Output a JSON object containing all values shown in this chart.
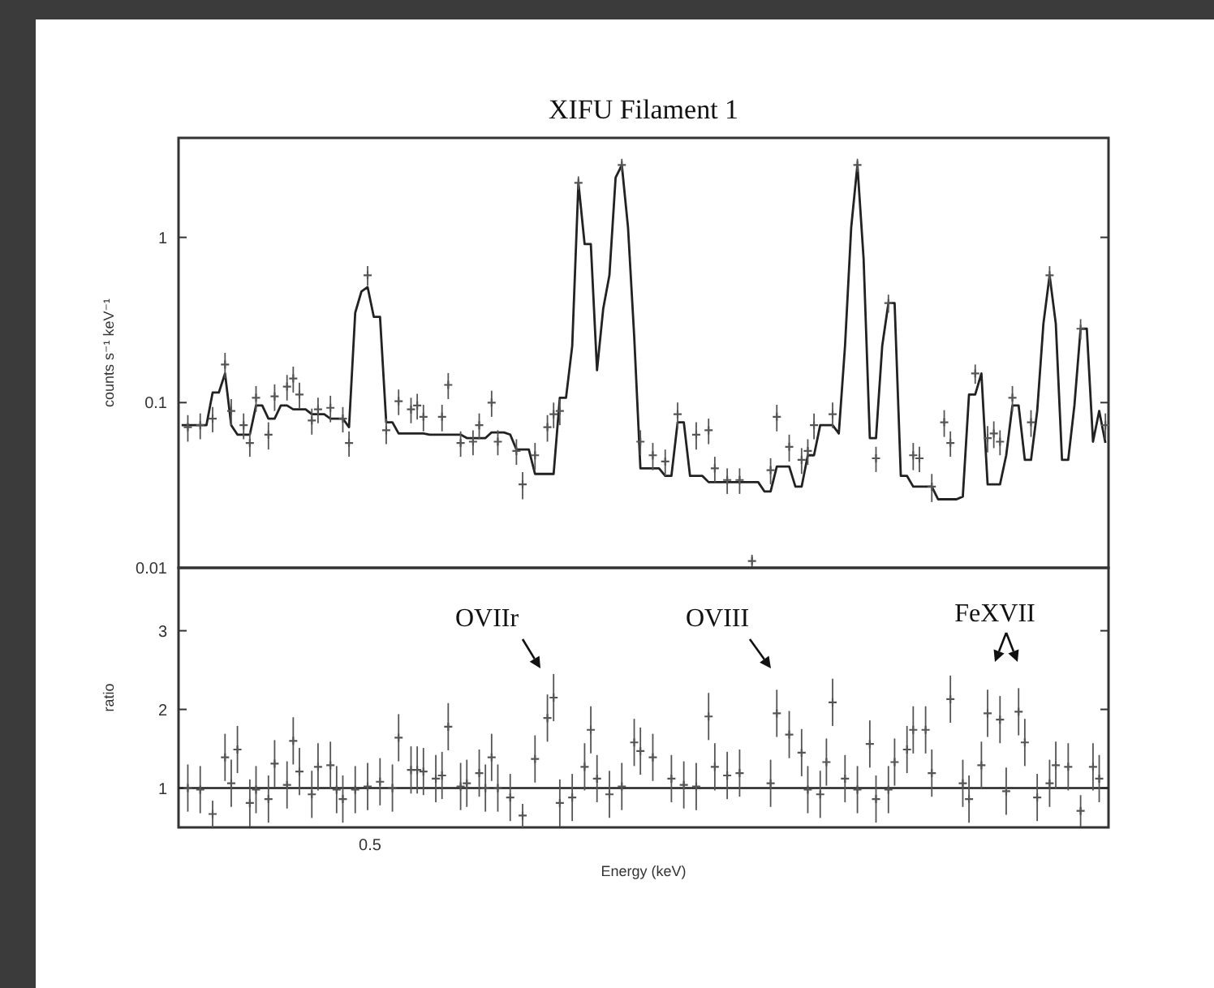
{
  "chart_data": [
    {
      "type": "scatter",
      "title": "XIFU Filament 1",
      "ylabel": "counts s⁻¹ keV⁻¹",
      "log": "y",
      "ylim": [
        0.01,
        4
      ],
      "yticks": [
        0.01,
        0.1,
        1
      ],
      "categories": [
        null,
        null,
        null,
        null,
        null,
        null,
        null,
        null,
        null,
        null,
        null,
        null,
        null,
        null,
        null,
        null,
        null,
        null,
        null,
        null,
        null,
        null,
        null,
        null,
        null,
        null,
        null,
        null,
        null,
        null,
        null,
        null,
        null,
        null,
        null,
        null,
        null,
        null,
        null,
        null,
        null,
        null,
        null,
        null,
        null,
        null,
        null,
        null,
        null,
        null,
        null,
        null,
        null,
        null,
        null,
        null,
        null,
        null,
        null,
        null,
        null,
        null,
        null,
        null,
        null,
        null,
        null,
        null,
        null,
        null,
        null,
        null,
        null,
        null,
        null,
        null,
        null,
        null,
        null,
        null,
        null,
        null,
        null,
        null,
        null,
        null,
        null,
        null,
        null,
        null,
        null,
        null,
        null,
        null,
        null,
        null,
        null,
        null,
        null,
        null,
        null,
        null,
        null,
        null,
        null,
        null,
        null,
        null,
        null,
        null,
        null,
        null,
        null,
        null,
        null,
        null,
        null,
        null,
        null,
        null,
        null,
        null,
        null,
        null,
        null,
        null,
        null,
        null,
        null,
        null,
        null,
        null,
        null,
        null,
        null,
        null,
        null,
        null,
        null,
        null,
        null,
        null,
        null,
        null,
        null,
        null,
        null,
        null,
        null,
        null
      ],
      "series": [
        {
          "type": "line",
          "color": "#222222",
          "values": [
            0.073,
            0.073,
            0.073,
            0.073,
            0.073,
            0.115,
            0.115,
            0.15,
            0.073,
            0.064,
            0.064,
            0.064,
            0.096,
            0.096,
            0.08,
            0.08,
            0.096,
            0.096,
            0.091,
            0.091,
            0.091,
            0.085,
            0.085,
            0.085,
            0.08,
            0.08,
            0.08,
            0.071,
            0.35,
            0.47,
            0.5,
            0.33,
            0.33,
            0.076,
            0.076,
            0.065,
            0.065,
            0.065,
            0.065,
            0.065,
            0.064,
            0.064,
            0.064,
            0.064,
            0.064,
            0.064,
            0.061,
            0.061,
            0.061,
            0.061,
            0.066,
            0.066,
            0.066,
            0.064,
            0.052,
            0.052,
            0.052,
            0.037,
            0.037,
            0.037,
            0.037,
            0.107,
            0.107,
            0.22,
            2.14,
            0.91,
            0.91,
            0.157,
            0.37,
            0.59,
            2.3,
            2.74,
            1.15,
            0.25,
            0.04,
            0.04,
            0.04,
            0.04,
            0.036,
            0.036,
            0.076,
            0.076,
            0.036,
            0.036,
            0.036,
            0.033,
            0.033,
            0.033,
            0.033,
            0.033,
            0.033,
            0.033,
            0.033,
            0.033,
            0.029,
            0.029,
            0.041,
            0.041,
            0.041,
            0.031,
            0.031,
            0.048,
            0.048,
            0.073,
            0.073,
            0.073,
            0.065,
            0.22,
            1.15,
            2.74,
            0.74,
            0.061,
            0.061,
            0.22,
            0.4,
            0.4,
            0.036,
            0.036,
            0.031,
            0.031,
            0.031,
            0.031,
            0.026,
            0.026,
            0.026,
            0.026,
            0.027,
            0.112,
            0.112,
            0.15,
            0.032,
            0.032,
            0.032,
            0.048,
            0.096,
            0.096,
            0.045,
            0.045,
            0.089,
            0.3,
            0.59,
            0.3,
            0.045,
            0.045,
            0.096,
            0.28,
            0.28,
            0.058,
            0.089,
            0.057
          ]
        },
        {
          "color": "#555555",
          "marker": "cross",
          "values": [
            null,
            0.071,
            null,
            0.073,
            null,
            0.08,
            null,
            0.17,
            0.089,
            null,
            0.073,
            0.057,
            0.107,
            null,
            0.064,
            0.109,
            null,
            0.125,
            0.14,
            0.112,
            null,
            0.078,
            0.091,
            null,
            0.093,
            null,
            0.08,
            0.057,
            null,
            null,
            0.59,
            null,
            null,
            0.068,
            null,
            0.102,
            null,
            0.091,
            0.096,
            0.082,
            null,
            null,
            0.082,
            0.128,
            null,
            0.057,
            null,
            0.058,
            0.073,
            null,
            0.1,
            0.058,
            null,
            null,
            0.051,
            0.032,
            null,
            0.048,
            null,
            0.071,
            0.085,
            0.089,
            null,
            null,
            2.14,
            null,
            null,
            null,
            null,
            null,
            null,
            2.74,
            null,
            null,
            0.058,
            null,
            0.048,
            null,
            0.044,
            null,
            0.085,
            null,
            null,
            0.064,
            null,
            0.068,
            0.04,
            null,
            0.034,
            null,
            0.034,
            null,
            0.011,
            null,
            null,
            0.039,
            0.082,
            null,
            0.054,
            null,
            0.045,
            0.051,
            0.073,
            null,
            null,
            0.085,
            null,
            null,
            null,
            2.74,
            null,
            null,
            0.046,
            null,
            0.4,
            null,
            null,
            null,
            0.048,
            0.046,
            null,
            0.031,
            null,
            0.076,
            0.057,
            null,
            null,
            null,
            0.15,
            null,
            0.061,
            0.065,
            0.058,
            null,
            0.107,
            null,
            null,
            0.076,
            null,
            null,
            0.59,
            null,
            null,
            null,
            null,
            0.28,
            null,
            null,
            null,
            0.073
          ],
          "errors": [
            null,
            0.013,
            null,
            0.013,
            null,
            0.014,
            null,
            0.03,
            0.016,
            null,
            0.013,
            0.01,
            0.019,
            null,
            0.012,
            0.02,
            null,
            0.022,
            0.025,
            0.02,
            null,
            0.014,
            0.016,
            null,
            0.017,
            null,
            0.014,
            0.01,
            null,
            null,
            0.08,
            null,
            null,
            0.012,
            null,
            0.018,
            null,
            0.016,
            0.017,
            0.015,
            null,
            null,
            0.015,
            0.023,
            null,
            0.01,
            null,
            0.01,
            0.013,
            null,
            0.018,
            0.01,
            null,
            null,
            0.009,
            0.006,
            null,
            0.009,
            null,
            0.013,
            0.015,
            0.016,
            null,
            null,
            0.2,
            null,
            null,
            null,
            null,
            null,
            null,
            0.25,
            null,
            null,
            0.01,
            null,
            0.009,
            null,
            0.008,
            null,
            0.015,
            null,
            null,
            0.012,
            null,
            0.012,
            0.007,
            null,
            0.006,
            null,
            0.006,
            null,
            0.001,
            null,
            null,
            0.007,
            0.015,
            null,
            0.01,
            null,
            0.008,
            0.009,
            0.013,
            null,
            null,
            0.015,
            null,
            null,
            null,
            0.25,
            null,
            null,
            0.008,
            null,
            0.05,
            null,
            null,
            null,
            0.009,
            0.008,
            null,
            0.006,
            null,
            0.014,
            0.01,
            null,
            null,
            null,
            0.02,
            null,
            0.011,
            0.012,
            0.01,
            null,
            0.019,
            null,
            null,
            0.014,
            null,
            null,
            0.08,
            null,
            null,
            null,
            null,
            0.04,
            null,
            null,
            null,
            0.013
          ]
        }
      ]
    },
    {
      "type": "scatter",
      "xlabel": "Energy (keV)",
      "ylabel": "ratio",
      "ylim": [
        0.5,
        3.8
      ],
      "yticks": [
        1,
        2,
        3
      ],
      "categories": [
        null,
        null,
        null,
        null,
        null,
        null,
        null,
        null,
        null,
        null,
        null,
        null,
        null,
        null,
        null,
        null,
        null,
        null,
        null,
        null,
        null,
        null,
        null,
        null,
        null,
        null,
        null,
        null,
        null,
        null,
        null,
        null,
        null,
        null,
        null,
        null,
        null,
        null,
        null,
        null,
        null,
        null,
        null,
        null,
        null,
        null,
        null,
        null,
        null,
        null,
        null,
        null,
        null,
        null,
        null,
        null,
        null,
        null,
        null,
        null,
        null,
        null,
        null,
        null,
        null,
        null,
        null,
        null,
        null,
        null,
        null,
        null,
        null,
        null,
        null,
        null,
        null,
        null,
        null,
        null,
        null,
        null,
        null,
        null,
        null,
        null,
        null,
        null,
        null,
        null,
        null,
        null,
        null,
        null,
        null,
        null,
        null,
        null,
        null,
        null,
        null,
        null,
        null,
        null,
        null,
        null,
        null,
        null,
        null,
        null,
        null,
        null,
        null,
        null,
        null,
        null,
        null,
        null,
        null,
        null,
        null,
        null,
        null,
        null,
        null,
        null,
        null,
        null,
        null,
        null,
        null,
        null,
        null,
        null,
        null,
        null,
        null,
        null,
        null,
        null,
        null,
        null,
        null,
        null,
        null,
        null,
        null,
        null,
        null,
        null
      ],
      "ref_lines": [
        {
          "axis": "y",
          "value": 1,
          "color": "#222222"
        }
      ],
      "annotations": [
        "OVIIr",
        "OVIII",
        "FeXVII",
        "0.5"
      ],
      "series": [
        {
          "color": "#555555",
          "marker": "cross",
          "values": [
            null,
            1.0,
            null,
            0.98,
            null,
            0.67,
            null,
            1.39,
            1.06,
            1.49,
            null,
            0.81,
            0.98,
            null,
            0.86,
            1.31,
            null,
            1.04,
            1.6,
            1.21,
            null,
            0.92,
            1.27,
            null,
            1.29,
            0.98,
            0.86,
            null,
            0.98,
            null,
            1.02,
            null,
            1.08,
            null,
            1.0,
            1.64,
            null,
            1.23,
            1.23,
            1.21,
            null,
            1.12,
            1.16,
            1.78,
            null,
            1.02,
            1.06,
            null,
            1.19,
            1.0,
            1.39,
            1.0,
            null,
            0.88,
            null,
            0.65,
            null,
            1.37,
            null,
            1.89,
            2.15,
            0.81,
            null,
            0.88,
            null,
            1.27,
            1.74,
            1.12,
            null,
            0.92,
            null,
            1.02,
            null,
            1.58,
            1.47,
            null,
            1.39,
            null,
            null,
            1.12,
            null,
            1.04,
            null,
            1.02,
            null,
            1.91,
            1.27,
            null,
            1.16,
            null,
            1.19,
            null,
            null,
            null,
            null,
            1.06,
            1.95,
            null,
            1.68,
            null,
            1.45,
            0.98,
            null,
            0.92,
            1.33,
            2.09,
            null,
            1.12,
            null,
            0.98,
            null,
            1.56,
            0.86,
            null,
            0.98,
            1.33,
            null,
            1.49,
            1.74,
            null,
            1.74,
            1.19,
            null,
            null,
            2.13,
            null,
            1.06,
            0.86,
            null,
            1.29,
            1.95,
            null,
            1.87,
            0.96,
            null,
            1.97,
            1.58,
            null,
            0.88,
            null,
            1.06,
            1.29,
            null,
            1.27,
            null,
            0.71,
            null,
            1.27,
            1.12,
            null
          ],
          "errors": [
            null,
            0.3,
            null,
            0.3,
            null,
            0.17,
            null,
            0.3,
            0.3,
            0.3,
            null,
            0.3,
            0.3,
            null,
            0.3,
            0.3,
            null,
            0.3,
            0.3,
            0.3,
            null,
            0.3,
            0.3,
            null,
            0.3,
            0.3,
            0.3,
            null,
            0.3,
            null,
            0.3,
            null,
            0.3,
            null,
            0.3,
            0.3,
            null,
            0.3,
            0.3,
            0.3,
            null,
            0.3,
            0.3,
            0.3,
            null,
            0.3,
            0.3,
            null,
            0.3,
            0.3,
            0.3,
            0.3,
            null,
            0.3,
            null,
            0.15,
            null,
            0.3,
            null,
            0.3,
            0.3,
            0.3,
            null,
            0.3,
            null,
            0.3,
            0.3,
            0.3,
            null,
            0.3,
            null,
            0.3,
            null,
            0.3,
            0.3,
            null,
            0.3,
            null,
            null,
            0.3,
            null,
            0.3,
            null,
            0.3,
            null,
            0.3,
            0.3,
            null,
            0.3,
            null,
            0.3,
            null,
            null,
            null,
            null,
            0.3,
            0.3,
            null,
            0.3,
            null,
            0.3,
            0.3,
            null,
            0.3,
            0.3,
            0.3,
            null,
            0.3,
            null,
            0.3,
            null,
            0.3,
            0.3,
            null,
            0.3,
            0.3,
            null,
            0.3,
            0.3,
            null,
            0.3,
            0.3,
            null,
            null,
            0.3,
            null,
            0.3,
            0.3,
            null,
            0.3,
            0.3,
            null,
            0.3,
            0.3,
            null,
            0.3,
            0.3,
            null,
            0.3,
            null,
            0.3,
            0.3,
            null,
            0.3,
            null,
            0.2,
            null,
            0.3,
            0.3,
            null
          ]
        }
      ]
    }
  ]
}
